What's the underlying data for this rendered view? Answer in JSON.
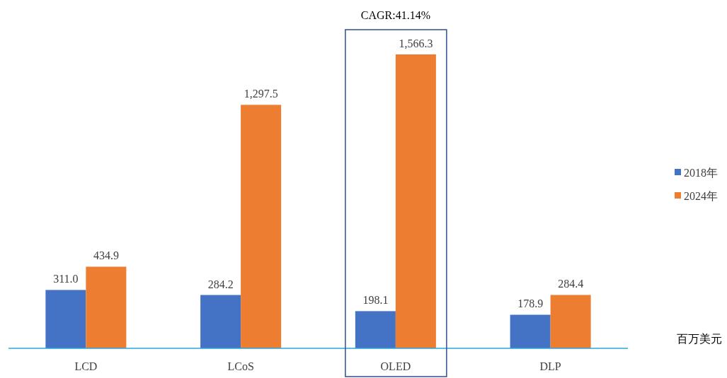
{
  "chart_data": {
    "type": "bar",
    "categories": [
      "LCD",
      "LCoS",
      "OLED",
      "DLP"
    ],
    "series": [
      {
        "name": "2018年",
        "color": "#4472c4",
        "values": [
          311.0,
          284.2,
          198.1,
          178.9
        ],
        "value_labels": [
          "311.0",
          "284.2",
          "198.1",
          "178.9"
        ]
      },
      {
        "name": "2024年",
        "color": "#ed7d31",
        "values": [
          434.9,
          1297.5,
          1566.3,
          284.4
        ],
        "value_labels": [
          "434.9",
          "1,297.5",
          "1,566.3",
          "284.4"
        ]
      }
    ],
    "legend": "right",
    "annotations": [
      "CAGR:41.14%",
      "百万美元"
    ]
  }
}
